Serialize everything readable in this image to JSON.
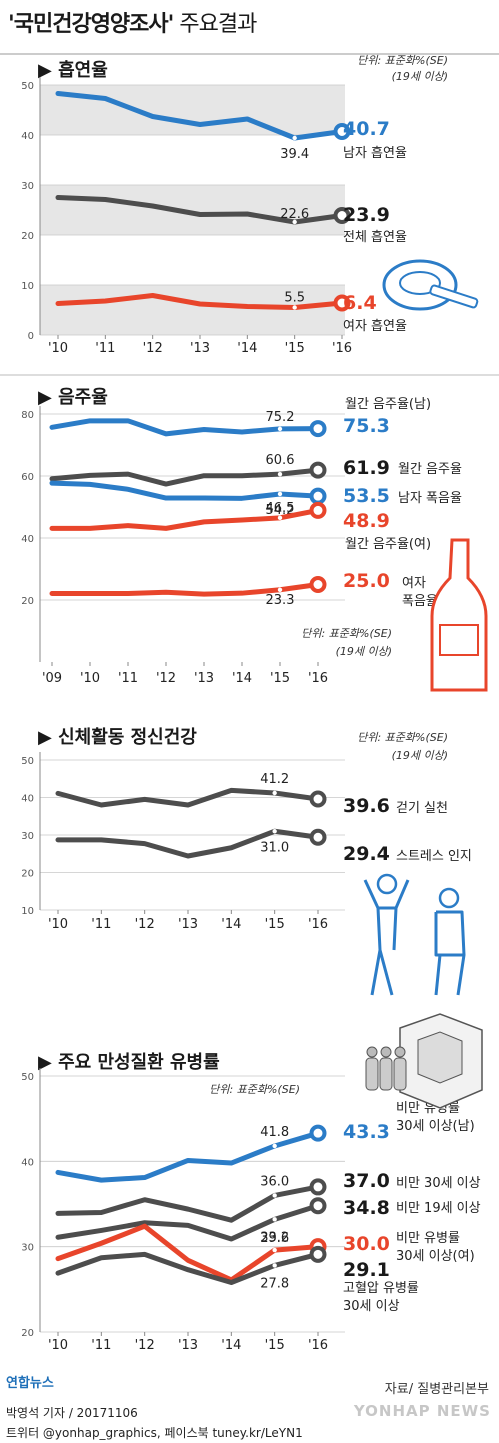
{
  "title": {
    "main": "'국민건강영양조사'",
    "sub": " 주요결과"
  },
  "source": "자료/ 질병관리본부",
  "byline": "박영석 기자 / 20171106",
  "social": "트위터 @yonhap_graphics, 페이스북 tuney.kr/LeYN1",
  "logo_left": "연합뉴스",
  "logo_right": "YONHAP NEWS",
  "colors": {
    "blue": "#2b7cc7",
    "gray": "#4d4d4d",
    "red": "#e8452b",
    "band": "#e6e6e6",
    "text": "#1a1a1a"
  },
  "chart_data": [
    {
      "type": "line",
      "title": "흡연율",
      "unit": "단위: 표준화%(SE)",
      "unit2": "(19세 이상)",
      "ylim": [
        0,
        50
      ],
      "yticks": [
        0,
        10,
        20,
        30,
        40,
        50
      ],
      "categories": [
        "'10",
        "'11",
        "'12",
        "'13",
        "'14",
        "'15",
        "'16"
      ],
      "series": [
        {
          "name": "남자 흡연율",
          "color": "blue",
          "values": [
            48.3,
            47.3,
            43.7,
            42.1,
            43.2,
            39.4,
            40.7
          ],
          "last_label": "40.7",
          "point_label": "39.4",
          "point_index": 5
        },
        {
          "name": "전체 흡연율",
          "color": "gray",
          "values": [
            27.5,
            27.1,
            25.8,
            24.1,
            24.2,
            22.6,
            23.9
          ],
          "last_label": "23.9",
          "point_label": "22.6",
          "point_index": 5
        },
        {
          "name": "여자 흡연율",
          "color": "red",
          "values": [
            6.3,
            6.8,
            7.9,
            6.2,
            5.7,
            5.5,
            6.4
          ],
          "last_label": "6.4",
          "point_label": "5.5",
          "point_index": 5
        }
      ]
    },
    {
      "type": "line",
      "title": "음주율",
      "unit": "단위: 표준화%(SE)",
      "unit2": "(19세 이상)",
      "ylim": [
        0,
        80
      ],
      "yticks": [
        20,
        40,
        60,
        80
      ],
      "categories": [
        "'09",
        "'10",
        "'11",
        "'12",
        "'13",
        "'14",
        "'15",
        "'16"
      ],
      "series": [
        {
          "name": "월간 음주율(남)",
          "color": "blue",
          "values": [
            75.7,
            77.8,
            77.8,
            73.6,
            75.0,
            74.2,
            75.2,
            75.3
          ],
          "last_label": "75.3",
          "point_label": "75.2",
          "point_index": 6
        },
        {
          "name": "월간 음주율",
          "color": "gray",
          "values": [
            59.1,
            60.2,
            60.6,
            57.4,
            60.1,
            60.1,
            60.6,
            61.9
          ],
          "last_label": "61.9",
          "point_label": "60.6",
          "point_index": 6
        },
        {
          "name": "남자 폭음율",
          "color": "blue",
          "values": [
            57.7,
            57.3,
            55.7,
            52.9,
            52.9,
            52.8,
            54.2,
            53.5
          ],
          "last_label": "53.5",
          "point_label": "54.2",
          "point_index": 6
        },
        {
          "name": "월간 음주율(여)",
          "color": "red",
          "values": [
            43.1,
            43.1,
            44.0,
            43.1,
            45.2,
            45.8,
            46.5,
            48.9
          ],
          "last_label": "48.9",
          "point_label": "46.5",
          "point_index": 6
        },
        {
          "name": "여자 폭음율",
          "color": "red",
          "values": [
            22.1,
            22.1,
            22.1,
            22.5,
            21.9,
            22.2,
            23.3,
            25.0
          ],
          "last_label": "25.0",
          "point_label": "23.3",
          "point_index": 6
        }
      ]
    },
    {
      "type": "line",
      "title": "신체활동 정신건강",
      "unit": "단위: 표준화%(SE)",
      "unit2": "(19세 이상)",
      "ylim": [
        10,
        50
      ],
      "yticks": [
        10,
        20,
        30,
        40,
        50
      ],
      "categories": [
        "'10",
        "'11",
        "'12",
        "'13",
        "'14",
        "'15",
        "'16"
      ],
      "series": [
        {
          "name": "걷기 실천",
          "color": "gray",
          "values": [
            41.1,
            38.0,
            39.5,
            38.0,
            41.9,
            41.2,
            39.6
          ],
          "last_label": "39.6",
          "point_label": "41.2",
          "point_index": 5
        },
        {
          "name": "스트레스 인지",
          "color": "gray",
          "values": [
            28.7,
            28.7,
            27.7,
            24.4,
            26.6,
            31.0,
            29.4
          ],
          "last_label": "29.4",
          "point_label": "31.0",
          "point_index": 5
        }
      ]
    },
    {
      "type": "line",
      "title": "주요 만성질환 유병률",
      "unit": "단위: 표준화%(SE)",
      "ylim": [
        20,
        50
      ],
      "yticks": [
        20,
        30,
        40,
        50
      ],
      "categories": [
        "'10",
        "'11",
        "'12",
        "'13",
        "'14",
        "'15",
        "'16"
      ],
      "series": [
        {
          "name": "비만 유병률 30세 이상(남)",
          "color": "blue",
          "values": [
            38.7,
            37.8,
            38.1,
            40.1,
            39.8,
            41.8,
            43.3
          ],
          "last_label": "43.3",
          "point_label": "41.8",
          "point_index": 5
        },
        {
          "name": "비만 30세 이상",
          "color": "gray",
          "values": [
            33.9,
            34.0,
            35.5,
            34.4,
            33.1,
            36.0,
            37.0
          ],
          "last_label": "37.0",
          "point_label": "36.0",
          "point_index": 5
        },
        {
          "name": "비만 19세 이상",
          "color": "gray",
          "values": [
            31.1,
            31.9,
            32.8,
            32.5,
            30.9,
            33.2,
            34.8
          ],
          "last_label": "34.8",
          "point_label": "33.2",
          "point_index": 5
        },
        {
          "name": "비만 유병률 30세 이상(여)",
          "color": "red",
          "values": [
            28.6,
            30.4,
            32.4,
            28.4,
            26.1,
            29.6,
            30.0
          ],
          "last_label": "30.0",
          "point_label": "29.6",
          "point_index": 5
        },
        {
          "name": "고혈압 유병률 30세 이상",
          "color": "gray",
          "values": [
            26.9,
            28.7,
            29.1,
            27.3,
            25.8,
            27.8,
            29.1
          ],
          "last_label": "29.1",
          "point_label": "27.8",
          "point_index": 5
        }
      ]
    }
  ]
}
